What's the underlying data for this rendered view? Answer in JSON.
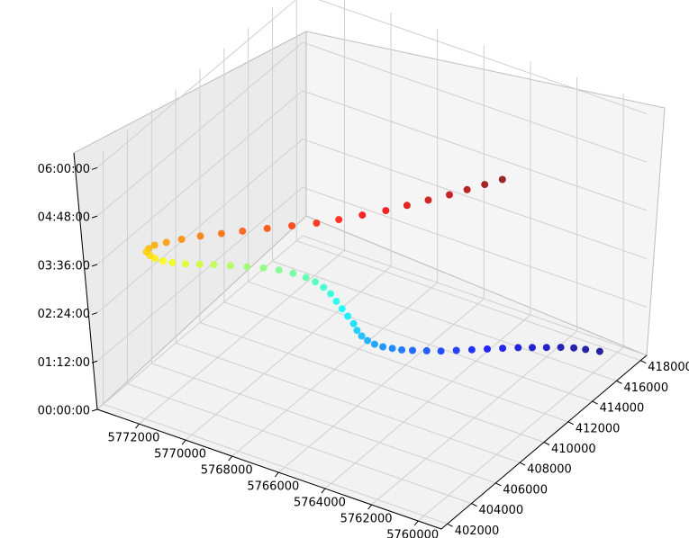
{
  "chart_data": {
    "type": "scatter",
    "title": "",
    "xlabel": "",
    "ylabel": "",
    "zlabel": "",
    "grid": true,
    "colormap": "jet",
    "x_ticks": [
      "402000",
      "404000",
      "406000",
      "408000",
      "410000",
      "412000",
      "414000",
      "416000",
      "418000"
    ],
    "y_ticks": [
      "5760000",
      "5762000",
      "5764000",
      "5766000",
      "5768000",
      "5770000",
      "5772000"
    ],
    "z_ticks": [
      "00:00:00",
      "01:12:00",
      "02:24:00",
      "03:36:00",
      "04:48:00",
      "06:00:00"
    ],
    "xlim": [
      401500,
      418500
    ],
    "ylim": [
      5759000,
      5773800
    ],
    "zlim": [
      0,
      6.3
    ],
    "points": [
      [
        417500,
        5760500,
        0.05
      ],
      [
        417100,
        5760900,
        0.12
      ],
      [
        416700,
        5761200,
        0.2
      ],
      [
        416200,
        5761500,
        0.28
      ],
      [
        415600,
        5761800,
        0.37
      ],
      [
        415000,
        5762100,
        0.46
      ],
      [
        414400,
        5762400,
        0.55
      ],
      [
        413700,
        5762700,
        0.65
      ],
      [
        413000,
        5763000,
        0.75
      ],
      [
        412300,
        5763300,
        0.85
      ],
      [
        411600,
        5763600,
        0.95
      ],
      [
        410900,
        5763900,
        1.05
      ],
      [
        410300,
        5764200,
        1.15
      ],
      [
        409700,
        5764500,
        1.25
      ],
      [
        409200,
        5764700,
        1.35
      ],
      [
        408800,
        5764900,
        1.45
      ],
      [
        408400,
        5765100,
        1.55
      ],
      [
        408100,
        5765300,
        1.65
      ],
      [
        407900,
        5765500,
        1.75
      ],
      [
        407800,
        5765700,
        1.85
      ],
      [
        407800,
        5765900,
        1.95
      ],
      [
        407900,
        5766100,
        2.05
      ],
      [
        408000,
        5766400,
        2.15
      ],
      [
        408100,
        5766700,
        2.25
      ],
      [
        408200,
        5767000,
        2.35
      ],
      [
        408300,
        5767300,
        2.45
      ],
      [
        408300,
        5767600,
        2.55
      ],
      [
        408200,
        5767900,
        2.65
      ],
      [
        408000,
        5768200,
        2.75
      ],
      [
        407700,
        5768600,
        2.85
      ],
      [
        407300,
        5769000,
        2.95
      ],
      [
        406800,
        5769400,
        3.05
      ],
      [
        406200,
        5769800,
        3.15
      ],
      [
        405600,
        5770200,
        3.25
      ],
      [
        405000,
        5770600,
        3.35
      ],
      [
        404400,
        5770900,
        3.45
      ],
      [
        403800,
        5771200,
        3.55
      ],
      [
        403300,
        5771500,
        3.65
      ],
      [
        402900,
        5771700,
        3.75
      ],
      [
        402600,
        5771900,
        3.85
      ],
      [
        402400,
        5772000,
        3.95
      ],
      [
        402300,
        5772100,
        4.05
      ],
      [
        402300,
        5772000,
        4.15
      ],
      [
        402400,
        5771800,
        4.25
      ],
      [
        402600,
        5771400,
        4.35
      ],
      [
        402900,
        5770900,
        4.45
      ],
      [
        403300,
        5770300,
        4.55
      ],
      [
        403700,
        5769600,
        4.65
      ],
      [
        404100,
        5768900,
        4.75
      ],
      [
        404600,
        5768100,
        4.85
      ],
      [
        405100,
        5767300,
        4.95
      ],
      [
        405600,
        5766500,
        5.05
      ],
      [
        406100,
        5765800,
        5.15
      ],
      [
        406700,
        5765100,
        5.25
      ],
      [
        407300,
        5764400,
        5.35
      ],
      [
        407900,
        5763800,
        5.45
      ],
      [
        408500,
        5763200,
        5.55
      ],
      [
        409100,
        5762600,
        5.65
      ],
      [
        409600,
        5762100,
        5.75
      ],
      [
        410100,
        5761600,
        5.85
      ],
      [
        410600,
        5761100,
        5.95
      ]
    ]
  }
}
